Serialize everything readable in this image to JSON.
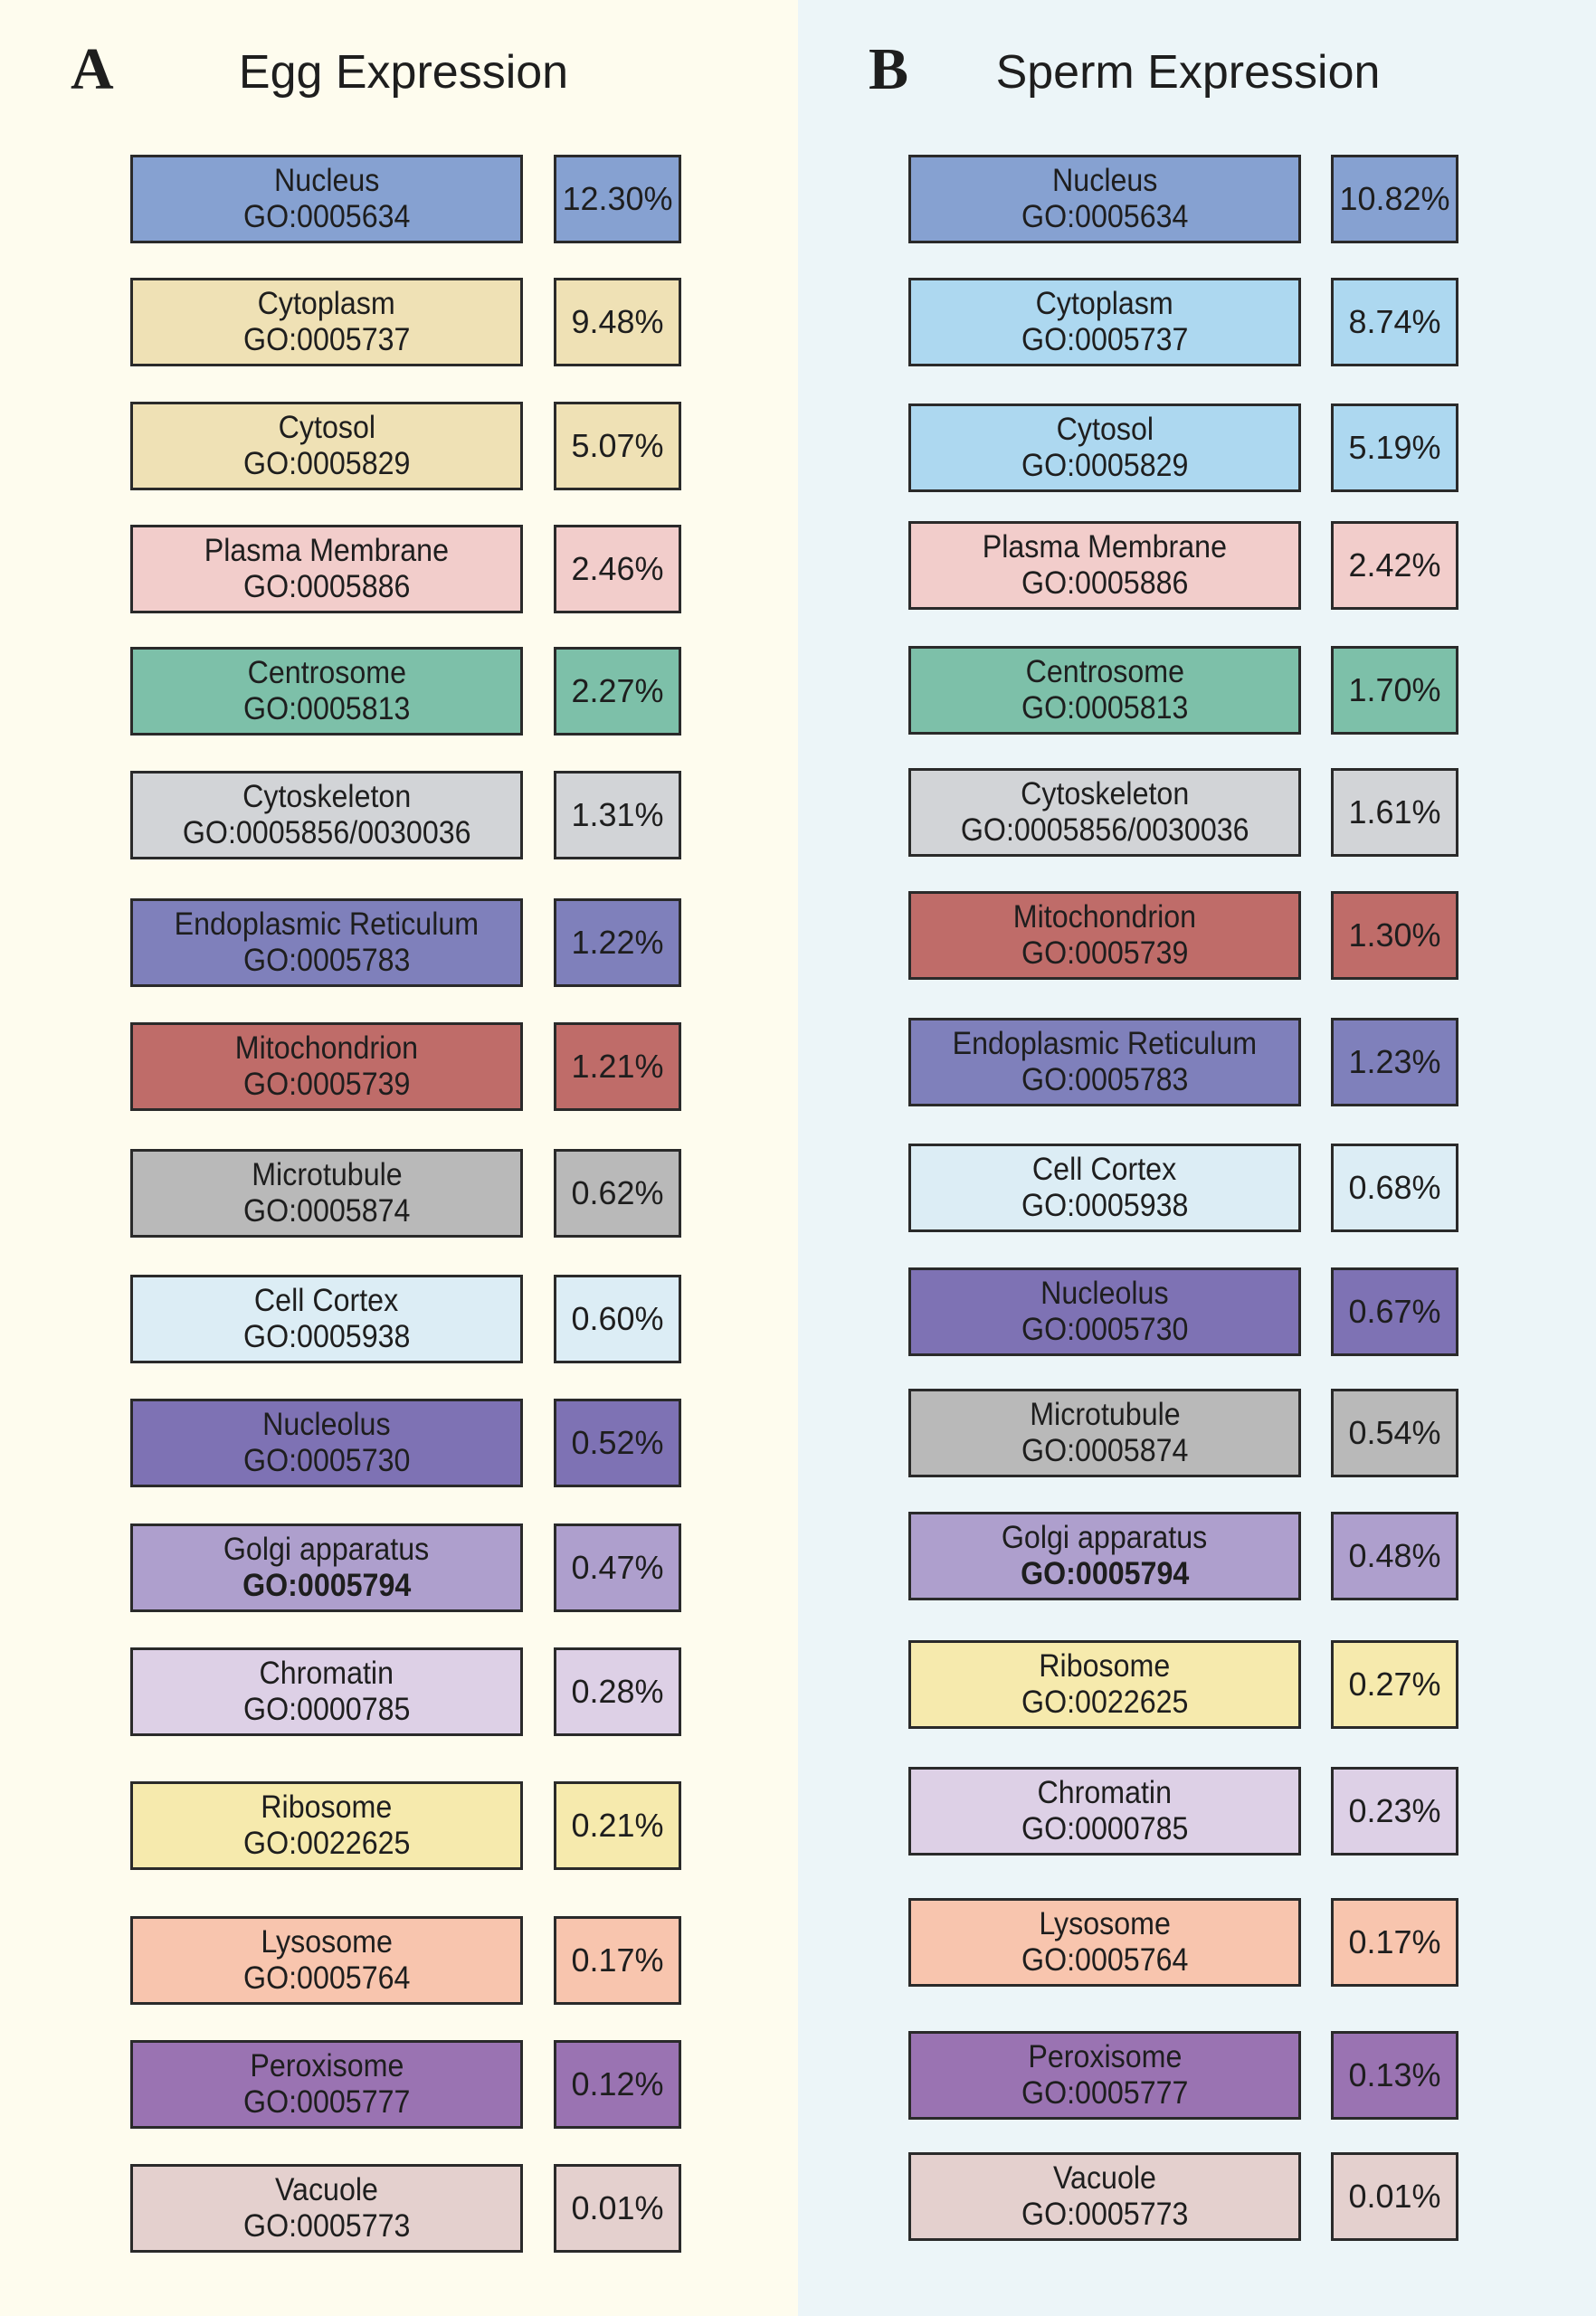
{
  "panels": [
    {
      "letter": "A",
      "title": "Egg Expression",
      "background": "#fefcee",
      "items": [
        {
          "name": "Nucleus",
          "go": "GO:0005634",
          "percent": "12.30%",
          "color": "#86a1d1"
        },
        {
          "name": "Cytoplasm",
          "go": "GO:0005737",
          "percent": "9.48%",
          "color": "#efe1b5"
        },
        {
          "name": "Cytosol",
          "go": "GO:0005829",
          "percent": "5.07%",
          "color": "#efe1b5"
        },
        {
          "name": "Plasma Membrane",
          "go": "GO:0005886",
          "percent": "2.46%",
          "color": "#f2cdcb"
        },
        {
          "name": "Centrosome",
          "go": "GO:0005813",
          "percent": "2.27%",
          "color": "#7dc0a9"
        },
        {
          "name": "Cytoskeleton",
          "go": "GO:0005856/0030036",
          "percent": "1.31%",
          "color": "#d2d4d7"
        },
        {
          "name": "Endoplasmic Reticulum",
          "go": "GO:0005783",
          "percent": "1.22%",
          "color": "#7f80bb"
        },
        {
          "name": "Mitochondrion",
          "go": "GO:0005739",
          "percent": "1.21%",
          "color": "#bf6c69"
        },
        {
          "name": "Microtubule",
          "go": "GO:0005874",
          "percent": "0.62%",
          "color": "#b9b9b9"
        },
        {
          "name": "Cell Cortex",
          "go": "GO:0005938",
          "percent": "0.60%",
          "color": "#dcedf5"
        },
        {
          "name": "Nucleolus",
          "go": "GO:0005730",
          "percent": "0.52%",
          "color": "#7e72b4"
        },
        {
          "name": "Golgi apparatus",
          "go": "GO:0005794",
          "percent": "0.47%",
          "color": "#ae9fcd",
          "go_bold": true
        },
        {
          "name": "Chromatin",
          "go": "GO:0000785",
          "percent": "0.28%",
          "color": "#ddd0e6"
        },
        {
          "name": "Ribosome",
          "go": "GO:0022625",
          "percent": "0.21%",
          "color": "#f6eaad"
        },
        {
          "name": "Lysosome",
          "go": "GO:0005764",
          "percent": "0.17%",
          "color": "#f8c5ae"
        },
        {
          "name": "Peroxisome",
          "go": "GO:0005777",
          "percent": "0.12%",
          "color": "#9a73b2"
        },
        {
          "name": "Vacuole",
          "go": "GO:0005773",
          "percent": "0.01%",
          "color": "#e4d0ce"
        }
      ]
    },
    {
      "letter": "B",
      "title": "Sperm Expression",
      "background": "#ecf5f8",
      "items": [
        {
          "name": "Nucleus",
          "go": "GO:0005634",
          "percent": "10.82%",
          "color": "#86a1d1"
        },
        {
          "name": "Cytoplasm",
          "go": "GO:0005737",
          "percent": "8.74%",
          "color": "#add8f0"
        },
        {
          "name": "Cytosol",
          "go": "GO:0005829",
          "percent": "5.19%",
          "color": "#add8f0"
        },
        {
          "name": "Plasma Membrane",
          "go": "GO:0005886",
          "percent": "2.42%",
          "color": "#f2cdcb"
        },
        {
          "name": "Centrosome",
          "go": "GO:0005813",
          "percent": "1.70%",
          "color": "#7dc0a9"
        },
        {
          "name": "Cytoskeleton",
          "go": "GO:0005856/0030036",
          "percent": "1.61%",
          "color": "#d2d4d7"
        },
        {
          "name": "Mitochondrion",
          "go": "GO:0005739",
          "percent": "1.30%",
          "color": "#bf6c69"
        },
        {
          "name": "Endoplasmic Reticulum",
          "go": "GO:0005783",
          "percent": "1.23%",
          "color": "#7f80bb"
        },
        {
          "name": "Cell Cortex",
          "go": "GO:0005938",
          "percent": "0.68%",
          "color": "#dcedf5"
        },
        {
          "name": "Nucleolus",
          "go": "GO:0005730",
          "percent": "0.67%",
          "color": "#7e72b4"
        },
        {
          "name": "Microtubule",
          "go": "GO:0005874",
          "percent": "0.54%",
          "color": "#b9b9b9"
        },
        {
          "name": "Golgi apparatus",
          "go": "GO:0005794",
          "percent": "0.48%",
          "color": "#ae9fcd",
          "go_bold": true
        },
        {
          "name": "Ribosome",
          "go": "GO:0022625",
          "percent": "0.27%",
          "color": "#f6eaad"
        },
        {
          "name": "Chromatin",
          "go": "GO:0000785",
          "percent": "0.23%",
          "color": "#ddd0e6"
        },
        {
          "name": "Lysosome",
          "go": "GO:0005764",
          "percent": "0.17%",
          "color": "#f8c5ae"
        },
        {
          "name": "Peroxisome",
          "go": "GO:0005777",
          "percent": "0.13%",
          "color": "#9a73b2"
        },
        {
          "name": "Vacuole",
          "go": "GO:0005773",
          "percent": "0.01%",
          "color": "#e4d0ce"
        }
      ]
    }
  ]
}
